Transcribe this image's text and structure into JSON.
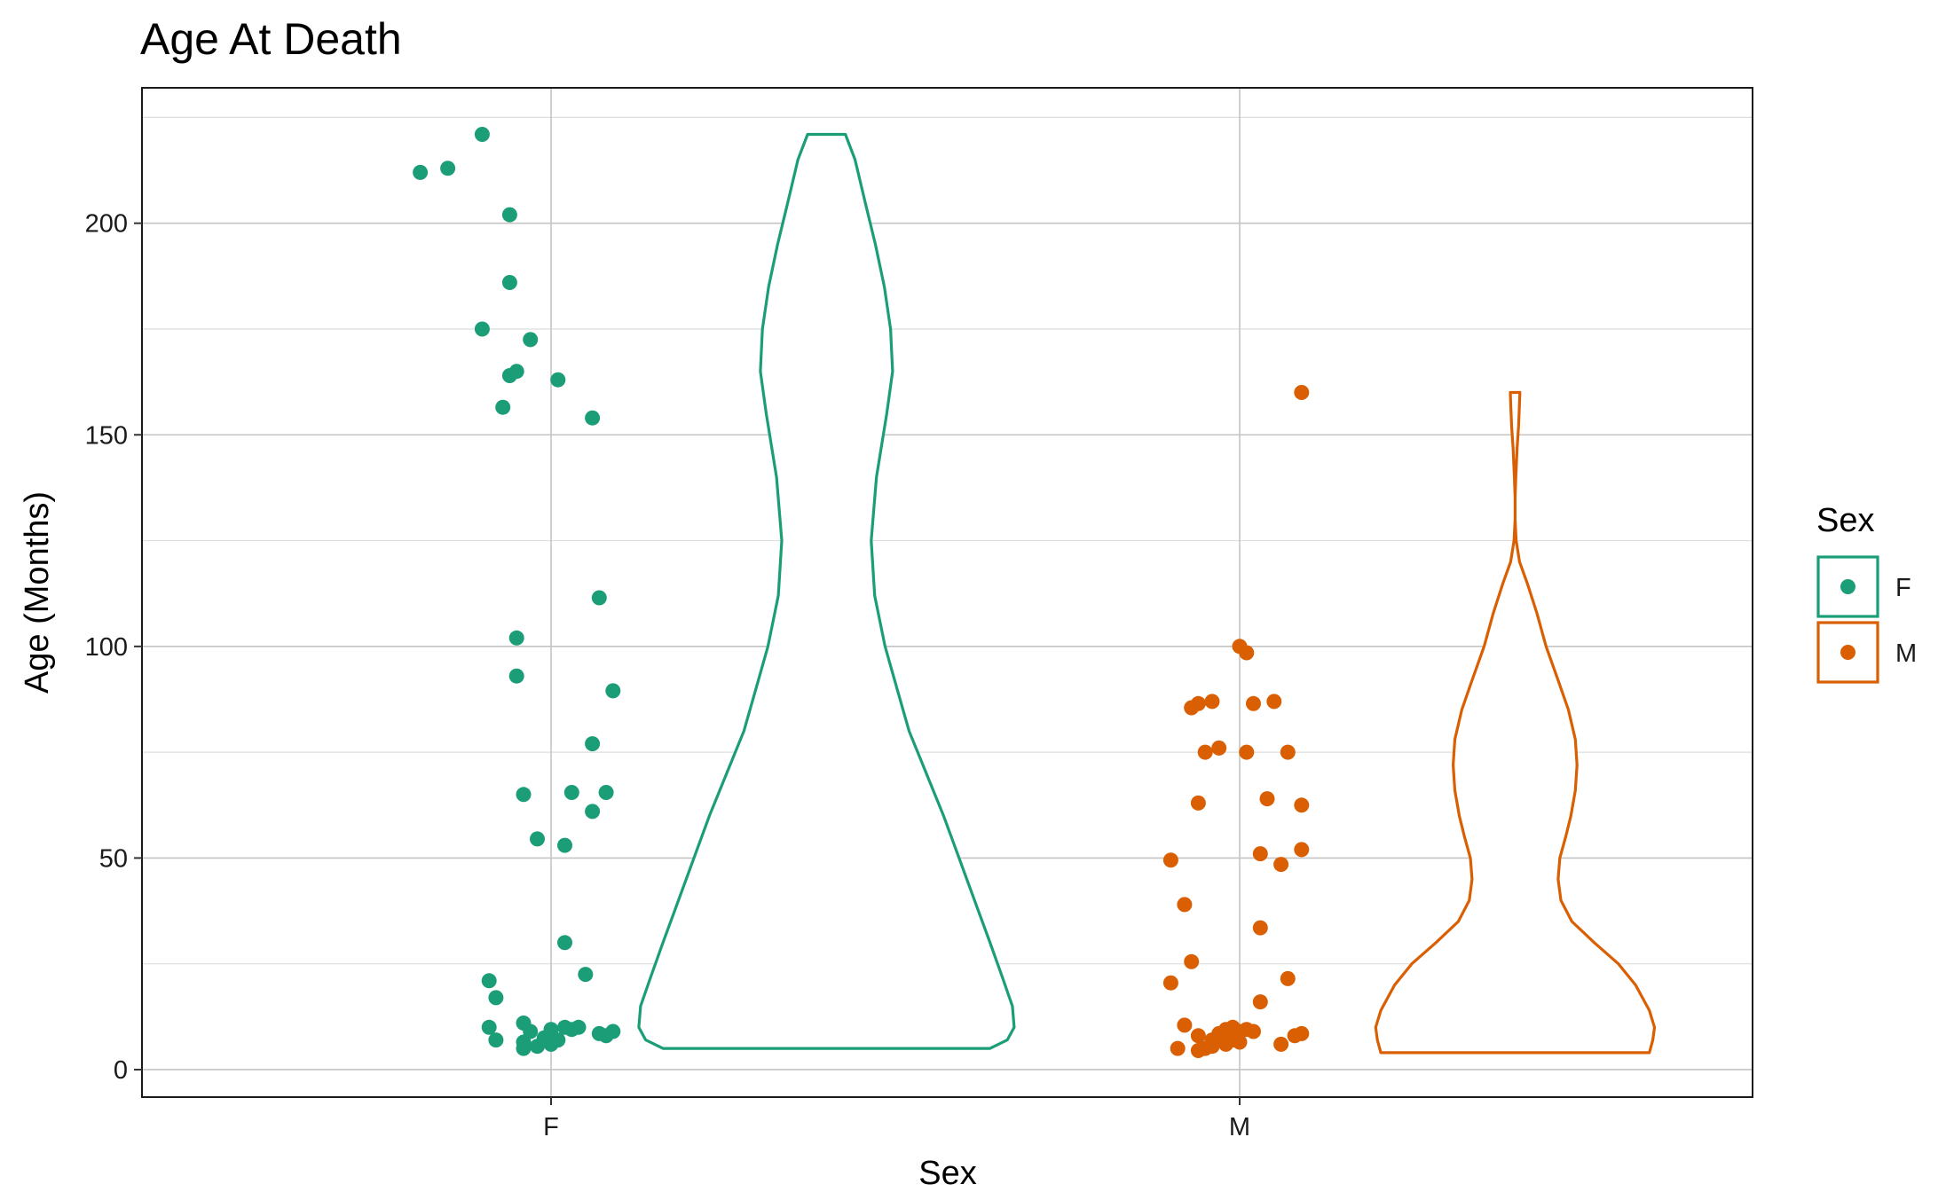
{
  "chart_data": {
    "type": "violin",
    "title": "Age At Death",
    "xlabel": "Sex",
    "ylabel": "Age (Months)",
    "categories": [
      "F",
      "M"
    ],
    "ylim": [
      -6.5,
      232
    ],
    "yticks": [
      0,
      50,
      100,
      150,
      200
    ],
    "grid": true,
    "legend": {
      "title": "Sex",
      "position": "right",
      "entries": [
        {
          "label": "F",
          "color": "#1b9e77"
        },
        {
          "label": "M",
          "color": "#d95f02"
        }
      ]
    },
    "series": [
      {
        "name": "F",
        "color": "#1b9e77",
        "violin_range": [
          5,
          221
        ],
        "points": [
          {
            "x": -0.1,
            "y": 221
          },
          {
            "x": -0.15,
            "y": 213
          },
          {
            "x": -0.19,
            "y": 212
          },
          {
            "x": -0.06,
            "y": 202
          },
          {
            "x": -0.06,
            "y": 186
          },
          {
            "x": -0.1,
            "y": 175
          },
          {
            "x": -0.03,
            "y": 172.5
          },
          {
            "x": -0.05,
            "y": 165
          },
          {
            "x": -0.06,
            "y": 164
          },
          {
            "x": 0.01,
            "y": 163
          },
          {
            "x": -0.07,
            "y": 156.5
          },
          {
            "x": 0.06,
            "y": 154
          },
          {
            "x": 0.07,
            "y": 111.5
          },
          {
            "x": -0.05,
            "y": 102
          },
          {
            "x": -0.05,
            "y": 93
          },
          {
            "x": 0.09,
            "y": 89.5
          },
          {
            "x": 0.06,
            "y": 77
          },
          {
            "x": -0.04,
            "y": 65
          },
          {
            "x": 0.03,
            "y": 65.5
          },
          {
            "x": 0.08,
            "y": 65.5
          },
          {
            "x": 0.06,
            "y": 61
          },
          {
            "x": -0.02,
            "y": 54.5
          },
          {
            "x": 0.02,
            "y": 53
          },
          {
            "x": 0.02,
            "y": 30
          },
          {
            "x": 0.05,
            "y": 22.5
          },
          {
            "x": -0.09,
            "y": 21
          },
          {
            "x": -0.08,
            "y": 17
          },
          {
            "x": -0.04,
            "y": 11
          },
          {
            "x": -0.09,
            "y": 10
          },
          {
            "x": -0.03,
            "y": 9
          },
          {
            "x": 0.0,
            "y": 9.5
          },
          {
            "x": 0.02,
            "y": 10
          },
          {
            "x": 0.03,
            "y": 9.5
          },
          {
            "x": 0.04,
            "y": 10
          },
          {
            "x": 0.07,
            "y": 8.5
          },
          {
            "x": 0.08,
            "y": 8
          },
          {
            "x": 0.09,
            "y": 9
          },
          {
            "x": -0.08,
            "y": 7
          },
          {
            "x": -0.04,
            "y": 6.5
          },
          {
            "x": -0.01,
            "y": 7.5
          },
          {
            "x": 0.0,
            "y": 6
          },
          {
            "x": -0.04,
            "y": 5
          },
          {
            "x": -0.02,
            "y": 5.5
          },
          {
            "x": 0.01,
            "y": 7
          }
        ],
        "violin_profile": [
          [
            5,
            0.475
          ],
          [
            7,
            0.525
          ],
          [
            10,
            0.545
          ],
          [
            15,
            0.54
          ],
          [
            22,
            0.51
          ],
          [
            30,
            0.475
          ],
          [
            40,
            0.43
          ],
          [
            50,
            0.385
          ],
          [
            60,
            0.34
          ],
          [
            70,
            0.29
          ],
          [
            80,
            0.24
          ],
          [
            90,
            0.205
          ],
          [
            100,
            0.17
          ],
          [
            112,
            0.14
          ],
          [
            125,
            0.13
          ],
          [
            140,
            0.145
          ],
          [
            155,
            0.175
          ],
          [
            165,
            0.192
          ],
          [
            175,
            0.186
          ],
          [
            185,
            0.168
          ],
          [
            195,
            0.142
          ],
          [
            205,
            0.112
          ],
          [
            215,
            0.083
          ],
          [
            221,
            0.055
          ]
        ]
      },
      {
        "name": "M",
        "color": "#d95f02",
        "violin_range": [
          4,
          160
        ],
        "points": [
          {
            "x": 0.09,
            "y": 160
          },
          {
            "x": 0.0,
            "y": 100
          },
          {
            "x": 0.01,
            "y": 98.5
          },
          {
            "x": 0.05,
            "y": 87
          },
          {
            "x": -0.04,
            "y": 87
          },
          {
            "x": -0.06,
            "y": 86.5
          },
          {
            "x": 0.02,
            "y": 86.5
          },
          {
            "x": -0.07,
            "y": 85.5
          },
          {
            "x": -0.03,
            "y": 76
          },
          {
            "x": 0.01,
            "y": 75
          },
          {
            "x": -0.05,
            "y": 75
          },
          {
            "x": 0.07,
            "y": 75
          },
          {
            "x": 0.04,
            "y": 64
          },
          {
            "x": -0.06,
            "y": 63
          },
          {
            "x": 0.09,
            "y": 62.5
          },
          {
            "x": 0.09,
            "y": 52
          },
          {
            "x": 0.03,
            "y": 51
          },
          {
            "x": 0.06,
            "y": 48.5
          },
          {
            "x": -0.1,
            "y": 49.5
          },
          {
            "x": -0.08,
            "y": 39
          },
          {
            "x": 0.03,
            "y": 33.5
          },
          {
            "x": -0.07,
            "y": 25.5
          },
          {
            "x": 0.07,
            "y": 21.5
          },
          {
            "x": -0.1,
            "y": 20.5
          },
          {
            "x": 0.03,
            "y": 16
          },
          {
            "x": -0.08,
            "y": 10.5
          },
          {
            "x": -0.06,
            "y": 8
          },
          {
            "x": -0.03,
            "y": 8.5
          },
          {
            "x": -0.02,
            "y": 9.5
          },
          {
            "x": -0.01,
            "y": 10
          },
          {
            "x": 0.0,
            "y": 9
          },
          {
            "x": 0.01,
            "y": 9.5
          },
          {
            "x": 0.02,
            "y": 9
          },
          {
            "x": 0.08,
            "y": 8
          },
          {
            "x": 0.09,
            "y": 8.5
          },
          {
            "x": -0.04,
            "y": 7
          },
          {
            "x": -0.02,
            "y": 6
          },
          {
            "x": -0.01,
            "y": 7
          },
          {
            "x": 0.0,
            "y": 6.5
          },
          {
            "x": 0.06,
            "y": 6
          },
          {
            "x": -0.09,
            "y": 5
          },
          {
            "x": -0.05,
            "y": 5
          },
          {
            "x": -0.04,
            "y": 5.5
          },
          {
            "x": -0.06,
            "y": 4.5
          }
        ],
        "violin_profile": [
          [
            4,
            0.39
          ],
          [
            7,
            0.4
          ],
          [
            10,
            0.405
          ],
          [
            14,
            0.39
          ],
          [
            20,
            0.35
          ],
          [
            25,
            0.3
          ],
          [
            30,
            0.23
          ],
          [
            35,
            0.165
          ],
          [
            40,
            0.133
          ],
          [
            45,
            0.125
          ],
          [
            50,
            0.13
          ],
          [
            55,
            0.147
          ],
          [
            60,
            0.162
          ],
          [
            66,
            0.175
          ],
          [
            72,
            0.18
          ],
          [
            78,
            0.175
          ],
          [
            85,
            0.155
          ],
          [
            92,
            0.125
          ],
          [
            100,
            0.09
          ],
          [
            108,
            0.063
          ],
          [
            115,
            0.035
          ],
          [
            120,
            0.013
          ],
          [
            125,
            0.003
          ],
          [
            130,
            0.0
          ],
          [
            135,
            0.0
          ],
          [
            140,
            0.002
          ],
          [
            147,
            0.006
          ],
          [
            152,
            0.01
          ],
          [
            156,
            0.012
          ],
          [
            160,
            0.014
          ]
        ]
      }
    ]
  }
}
